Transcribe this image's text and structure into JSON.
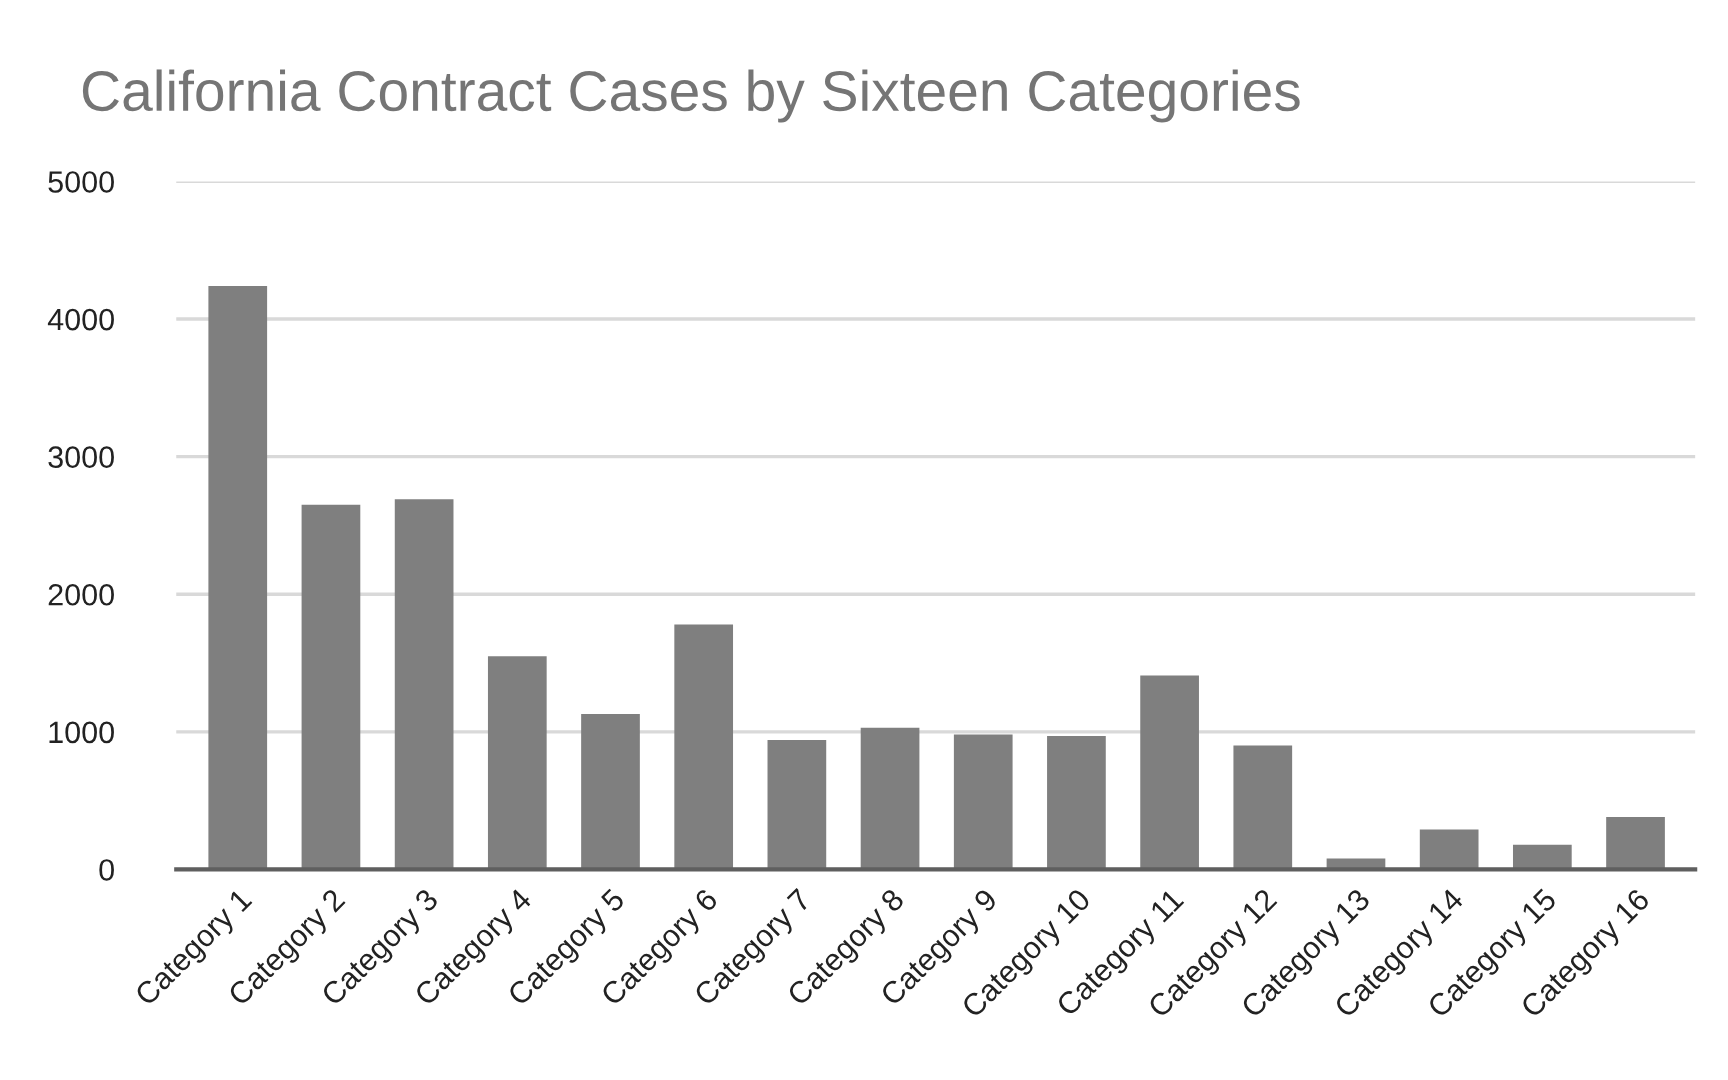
{
  "chart_data": {
    "type": "bar",
    "title": "California Contract Cases by Sixteen Categories",
    "categories": [
      "Category 1",
      "Category 2",
      "Category 3",
      "Category 4",
      "Category 5",
      "Category 6",
      "Category 7",
      "Category 8",
      "Category 9",
      "Category 10",
      "Category 11",
      "Category 12",
      "Category 13",
      "Category 14",
      "Category 15",
      "Category 16"
    ],
    "values": [
      4240,
      2650,
      2690,
      1550,
      1130,
      1780,
      940,
      1030,
      980,
      970,
      1410,
      900,
      80,
      290,
      180,
      380
    ],
    "color": "#7f7f7f",
    "ylim": [
      0,
      5000
    ],
    "yticks": [
      0,
      1000,
      2000,
      3000,
      4000,
      5000
    ],
    "grid": "y"
  }
}
